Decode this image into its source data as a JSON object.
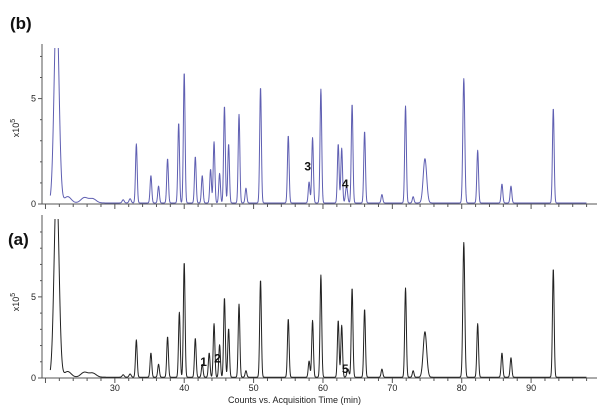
{
  "chart_data": [
    {
      "type": "line",
      "panel_label": "(b)",
      "ylabel_base": "x10",
      "ylabel_exp": "5",
      "y_ticks": [
        0,
        5
      ],
      "ylim": [
        0,
        7.4
      ],
      "xlim": [
        19.5,
        99.5
      ],
      "x_ticks": [],
      "grid": false,
      "color": "#5f5fb2",
      "baseline": 0.05,
      "peaks": [
        [
          21.6,
          9.5,
          0.35
        ],
        [
          23.2,
          0.3,
          0.5
        ],
        [
          25.6,
          0.25,
          0.5
        ],
        [
          26.8,
          0.2,
          0.5
        ],
        [
          31.2,
          0.15,
          0.15
        ],
        [
          32.2,
          0.2,
          0.15
        ],
        [
          33.1,
          2.8,
          0.12
        ],
        [
          35.2,
          1.3,
          0.12
        ],
        [
          36.3,
          0.8,
          0.12
        ],
        [
          37.6,
          2.1,
          0.12
        ],
        [
          39.2,
          3.8,
          0.12
        ],
        [
          40.0,
          6.2,
          0.12
        ],
        [
          41.6,
          2.2,
          0.12
        ],
        [
          42.6,
          1.3,
          0.12
        ],
        [
          43.8,
          1.6,
          0.12
        ],
        [
          44.3,
          2.9,
          0.12
        ],
        [
          45.1,
          1.4,
          0.12
        ],
        [
          45.8,
          4.6,
          0.12
        ],
        [
          46.4,
          2.8,
          0.12
        ],
        [
          47.9,
          4.2,
          0.12
        ],
        [
          48.9,
          0.7,
          0.12
        ],
        [
          51.0,
          5.5,
          0.12
        ],
        [
          55.0,
          3.2,
          0.12
        ],
        [
          58.0,
          1.0,
          0.12
        ],
        [
          58.5,
          3.1,
          0.12
        ],
        [
          59.7,
          5.4,
          0.12
        ],
        [
          62.2,
          2.8,
          0.12
        ],
        [
          62.7,
          2.6,
          0.12
        ],
        [
          63.4,
          0.8,
          0.15
        ],
        [
          64.2,
          4.7,
          0.12
        ],
        [
          66.0,
          3.4,
          0.12
        ],
        [
          68.5,
          0.4,
          0.12
        ],
        [
          71.9,
          4.6,
          0.12
        ],
        [
          73.0,
          0.3,
          0.12
        ],
        [
          74.7,
          2.1,
          0.25
        ],
        [
          80.3,
          5.9,
          0.14
        ],
        [
          82.3,
          2.5,
          0.12
        ],
        [
          85.8,
          0.9,
          0.12
        ],
        [
          87.1,
          0.8,
          0.12
        ],
        [
          93.2,
          4.5,
          0.12
        ]
      ],
      "annotations": [
        {
          "text": "3",
          "x": 57.8,
          "y": 1.6
        },
        {
          "text": "4",
          "x": 63.2,
          "y": 0.75
        }
      ]
    },
    {
      "type": "line",
      "panel_label": "(a)",
      "ylabel_base": "x10",
      "ylabel_exp": "5",
      "y_ticks": [
        0,
        5
      ],
      "ylim": [
        0,
        9.8
      ],
      "xlim": [
        19.5,
        99.5
      ],
      "x_ticks": [
        30,
        40,
        50,
        60,
        70,
        80,
        90
      ],
      "xlabel": "Counts vs. Acquisition Time (min)",
      "grid": false,
      "color": "#222222",
      "baseline": 0.05,
      "peaks": [
        [
          21.6,
          12.0,
          0.35
        ],
        [
          23.2,
          0.35,
          0.5
        ],
        [
          25.6,
          0.3,
          0.5
        ],
        [
          26.8,
          0.25,
          0.5
        ],
        [
          31.2,
          0.15,
          0.15
        ],
        [
          32.2,
          0.2,
          0.15
        ],
        [
          33.1,
          2.3,
          0.12
        ],
        [
          35.2,
          1.5,
          0.12
        ],
        [
          36.3,
          0.8,
          0.12
        ],
        [
          37.6,
          2.5,
          0.12
        ],
        [
          39.3,
          4.0,
          0.12
        ],
        [
          40.0,
          7.1,
          0.12
        ],
        [
          41.6,
          2.4,
          0.12
        ],
        [
          42.6,
          0.8,
          0.12
        ],
        [
          43.6,
          1.5,
          0.12
        ],
        [
          44.3,
          3.3,
          0.12
        ],
        [
          45.1,
          2.0,
          0.12
        ],
        [
          45.8,
          4.9,
          0.12
        ],
        [
          46.4,
          3.0,
          0.12
        ],
        [
          47.9,
          4.5,
          0.12
        ],
        [
          48.9,
          0.4,
          0.12
        ],
        [
          51.0,
          6.0,
          0.12
        ],
        [
          55.0,
          3.6,
          0.12
        ],
        [
          58.0,
          1.0,
          0.12
        ],
        [
          58.5,
          3.5,
          0.12
        ],
        [
          59.7,
          6.3,
          0.12
        ],
        [
          62.2,
          3.5,
          0.12
        ],
        [
          62.7,
          3.2,
          0.12
        ],
        [
          63.6,
          0.5,
          0.15
        ],
        [
          64.2,
          5.5,
          0.12
        ],
        [
          66.0,
          4.2,
          0.12
        ],
        [
          68.5,
          0.5,
          0.12
        ],
        [
          71.9,
          5.5,
          0.12
        ],
        [
          73.0,
          0.4,
          0.12
        ],
        [
          74.7,
          2.8,
          0.25
        ],
        [
          80.3,
          8.3,
          0.14
        ],
        [
          82.3,
          3.3,
          0.12
        ],
        [
          85.8,
          1.5,
          0.12
        ],
        [
          87.1,
          1.2,
          0.12
        ],
        [
          93.2,
          6.7,
          0.12
        ]
      ],
      "annotations": [
        {
          "text": "1",
          "x": 42.8,
          "y": 0.75
        },
        {
          "text": "2",
          "x": 44.8,
          "y": 0.95
        },
        {
          "text": "5",
          "x": 63.2,
          "y": 0.3
        }
      ]
    }
  ]
}
